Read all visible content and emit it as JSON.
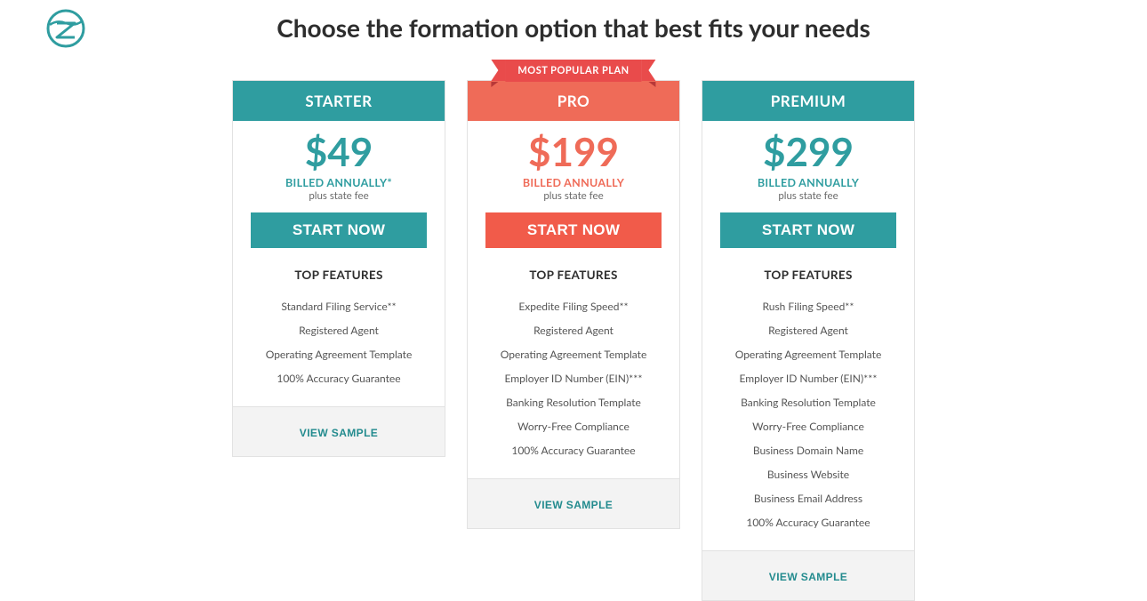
{
  "page": {
    "title": "Choose the formation option that best fits your needs"
  },
  "colors": {
    "teal": "#2f9da0",
    "teal_dark": "#238b8e",
    "coral": "#ef6b58",
    "coral_bright": "#f15b4a",
    "ribbon": "#e94b4b",
    "text": "#2d2d2d",
    "muted": "#6a6a6a",
    "border": "#e2e2e2",
    "foot_bg": "#f3f3f3"
  },
  "labels": {
    "top_features": "TOP FEATURES",
    "view_sample": "VIEW SAMPLE",
    "start_now": "START NOW",
    "plus_state_fee": "plus state fee"
  },
  "badge": {
    "text": "MOST POPULAR PLAN"
  },
  "plans": [
    {
      "id": "starter",
      "name": "STARTER",
      "price": "$49",
      "billing": "BILLED ANNUALLY*",
      "head_bg": "#2f9da0",
      "price_color": "#2f9da0",
      "billing_color": "#2f9da0",
      "cta_bg": "#2f9da0",
      "badge": false,
      "features": [
        "Standard Filing Service**",
        "Registered Agent",
        "Operating Agreement Template",
        "100% Accuracy Guarantee"
      ]
    },
    {
      "id": "pro",
      "name": "PRO",
      "price": "$199",
      "billing": "BILLED ANNUALLY",
      "head_bg": "#ef6b58",
      "price_color": "#ef6b58",
      "billing_color": "#ef6b58",
      "cta_bg": "#f15b4a",
      "badge": true,
      "features": [
        "Expedite Filing Speed**",
        "Registered Agent",
        "Operating Agreement Template",
        "Employer ID Number (EIN)***",
        "Banking Resolution Template",
        "Worry-Free Compliance",
        "100% Accuracy Guarantee"
      ]
    },
    {
      "id": "premium",
      "name": "PREMIUM",
      "price": "$299",
      "billing": "BILLED ANNUALLY",
      "head_bg": "#2f9da0",
      "price_color": "#2f9da0",
      "billing_color": "#2f9da0",
      "cta_bg": "#2f9da0",
      "badge": false,
      "features": [
        "Rush Filing Speed**",
        "Registered Agent",
        "Operating Agreement Template",
        "Employer ID Number (EIN)***",
        "Banking Resolution Template",
        "Worry-Free Compliance",
        "Business Domain Name",
        "Business Website",
        "Business Email Address",
        "100% Accuracy Guarantee"
      ]
    }
  ]
}
